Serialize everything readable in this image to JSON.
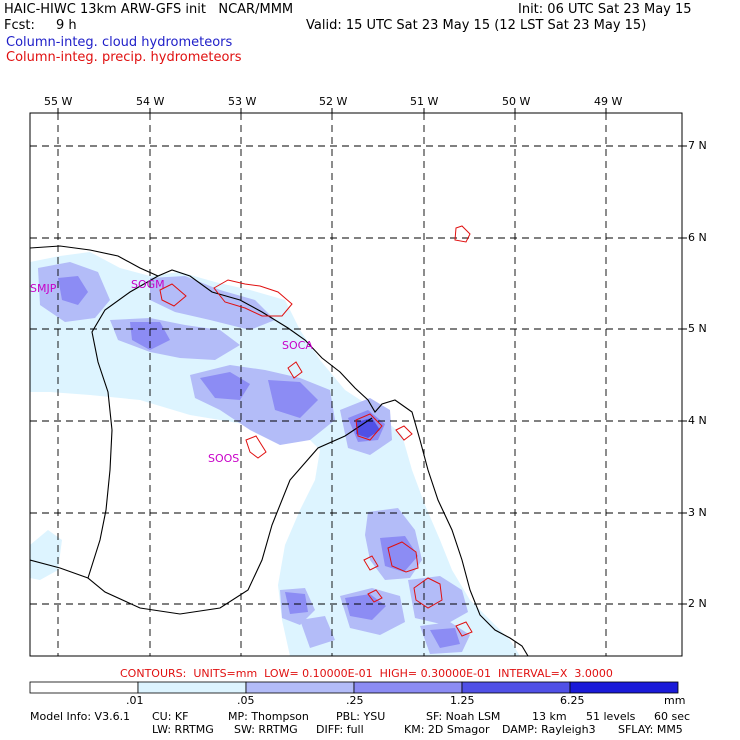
{
  "header": {
    "title": "HAIC-HIWC 13km ARW-GFS init   NCAR/MMM",
    "init": "Init: 06 UTC Sat 23 May 15",
    "fcst_label": "Fcst:",
    "fcst_value": "9 h",
    "valid": "Valid: 15 UTC Sat 23 May 15 (12 LST Sat 23 May 15)",
    "legend_cloud": "Column-integ. cloud hydrometeors",
    "legend_precip": "Column-integ. precip. hydrometeors",
    "colors": {
      "cloud": "#1e1ec8",
      "precip": "#e01010"
    }
  },
  "map": {
    "lon_labels": [
      "55 W",
      "54 W",
      "53 W",
      "52 W",
      "51 W",
      "50 W",
      "49 W"
    ],
    "lat_labels": [
      "7 N",
      "6 N",
      "5 N",
      "4 N",
      "3 N",
      "2 N"
    ],
    "stations": [
      "SMJP",
      "SOGM",
      "SOCA",
      "SOOS"
    ],
    "station_color": "#c800c8",
    "grid": "dashed"
  },
  "contours_text": "CONTOURS:  UNITS=mm  LOW= 0.10000E-01  HIGH= 0.30000E-01  INTERVAL=X  3.0000",
  "colorbar": {
    "ticks": [
      ".01",
      ".05",
      ".25",
      "1.25",
      "6.25"
    ],
    "units": "mm",
    "colors": [
      "#ffffff",
      "#ddf4ff",
      "#b3bcf8",
      "#8c8cf4",
      "#5050e6",
      "#1a1ad8"
    ]
  },
  "footer": {
    "line1": [
      "Model Info: V3.6.1",
      "CU: KF",
      "MP: Thompson",
      "PBL: YSU",
      "SF: Noah LSM",
      "13 km",
      "51 levels",
      "60 sec"
    ],
    "line2": [
      "LW: RRTMG",
      "SW: RRTMG",
      "DIFF: full",
      "KM: 2D Smagor",
      "DAMP: Rayleigh3",
      "SFLAY: MM5"
    ]
  }
}
